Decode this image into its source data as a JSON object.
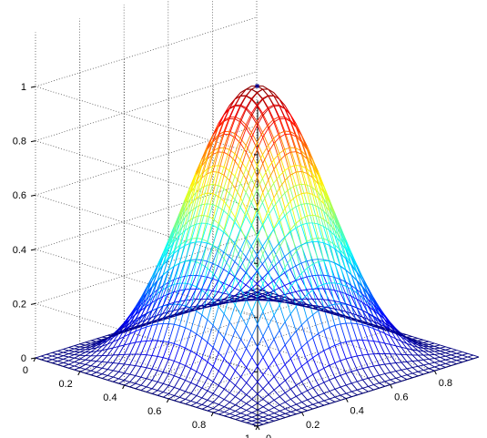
{
  "chart_data": {
    "type": "surface-mesh",
    "function": "sin(pi*x)^2 * sin(pi*y)^2",
    "x": [
      0,
      0.025,
      0.05,
      0.075,
      0.1,
      0.125,
      0.15,
      0.175,
      0.2,
      0.225,
      0.25,
      0.275,
      0.3,
      0.325,
      0.35,
      0.375,
      0.4,
      0.425,
      0.45,
      0.475,
      0.5,
      0.525,
      0.55,
      0.575,
      0.6,
      0.625,
      0.65,
      0.675,
      0.7,
      0.725,
      0.75,
      0.775,
      0.8,
      0.825,
      0.85,
      0.875,
      0.9,
      0.925,
      0.95,
      0.975,
      1
    ],
    "y": [
      0,
      0.025,
      0.05,
      0.075,
      0.1,
      0.125,
      0.15,
      0.175,
      0.2,
      0.225,
      0.25,
      0.275,
      0.3,
      0.325,
      0.35,
      0.375,
      0.4,
      0.425,
      0.45,
      0.475,
      0.5,
      0.525,
      0.55,
      0.575,
      0.6,
      0.625,
      0.65,
      0.675,
      0.7,
      0.725,
      0.75,
      0.775,
      0.8,
      0.825,
      0.85,
      0.875,
      0.9,
      0.925,
      0.95,
      0.975,
      1
    ],
    "peak": {
      "x": 0.5,
      "y": 0.5,
      "z": 1
    },
    "zlim": [
      0,
      1.2
    ],
    "colormap": "jet",
    "grid": true,
    "z_ticks": [
      "0",
      "0.2",
      "0.4",
      "0.6",
      "0.8",
      "1"
    ],
    "x_ticks": [
      "0",
      "0.2",
      "0.4",
      "0.6",
      "0.8",
      "1"
    ],
    "y_ticks": [
      "0",
      "0.2",
      "0.4",
      "0.6",
      "0.8"
    ],
    "title": "",
    "xlabel": "",
    "ylabel": "",
    "zlabel": ""
  }
}
